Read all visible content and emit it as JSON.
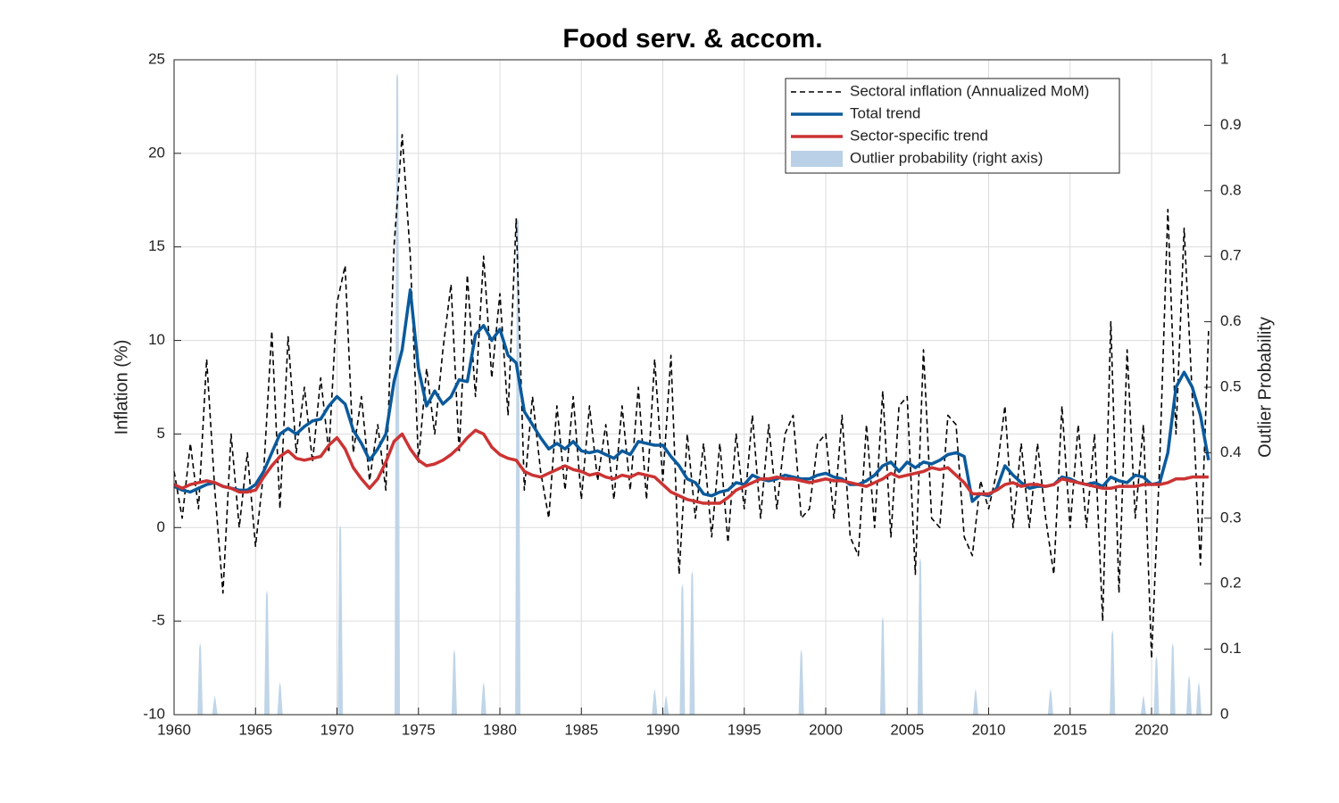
{
  "chart_data": {
    "type": "line",
    "title": "Food serv. & accom.",
    "ylabel": "Inflation (%)",
    "y2label": "Outlier Probability",
    "xlim": [
      1960,
      2023.67
    ],
    "xticks": [
      1960,
      1965,
      1970,
      1975,
      1980,
      1985,
      1990,
      1995,
      2000,
      2005,
      2010,
      2015,
      2020
    ],
    "ylim": [
      -10,
      25
    ],
    "yticks": [
      -10,
      -5,
      0,
      5,
      10,
      15,
      20,
      25
    ],
    "y2lim": [
      0,
      1
    ],
    "y2ticks": [
      0,
      0.1,
      0.2,
      0.3,
      0.4,
      0.5,
      0.6,
      0.7,
      0.8,
      0.9,
      1
    ],
    "grid": true,
    "legend": "northeast",
    "x": [
      1960,
      1960.5,
      1961,
      1961.5,
      1962,
      1962.5,
      1963,
      1963.5,
      1964,
      1964.5,
      1965,
      1965.5,
      1966,
      1966.5,
      1967,
      1967.5,
      1968,
      1968.5,
      1969,
      1969.5,
      1970,
      1970.5,
      1971,
      1971.5,
      1972,
      1972.5,
      1973,
      1973.5,
      1974,
      1974.5,
      1975,
      1975.5,
      1976,
      1976.5,
      1977,
      1977.5,
      1978,
      1978.5,
      1979,
      1979.5,
      1980,
      1980.5,
      1981,
      1981.5,
      1982,
      1982.5,
      1983,
      1983.5,
      1984,
      1984.5,
      1985,
      1985.5,
      1986,
      1986.5,
      1987,
      1987.5,
      1988,
      1988.5,
      1989,
      1989.5,
      1990,
      1990.5,
      1991,
      1991.5,
      1992,
      1992.5,
      1993,
      1993.5,
      1994,
      1994.5,
      1995,
      1995.5,
      1996,
      1996.5,
      1997,
      1997.5,
      1998,
      1998.5,
      1999,
      1999.5,
      2000,
      2000.5,
      2001,
      2001.5,
      2002,
      2002.5,
      2003,
      2003.5,
      2004,
      2004.5,
      2005,
      2005.5,
      2006,
      2006.5,
      2007,
      2007.5,
      2008,
      2008.5,
      2009,
      2009.5,
      2010,
      2010.5,
      2011,
      2011.5,
      2012,
      2012.5,
      2013,
      2013.5,
      2014,
      2014.5,
      2015,
      2015.5,
      2016,
      2016.5,
      2017,
      2017.5,
      2018,
      2018.5,
      2019,
      2019.5,
      2020,
      2020.5,
      2021,
      2021.5,
      2022,
      2022.5,
      2023,
      2023.5
    ],
    "series": [
      {
        "name": "Outlier probability (right axis)",
        "color": "#b9d0e6",
        "mark": "area",
        "axis": "y2",
        "x": [
          1961.6,
          1962.5,
          1965.7,
          1966.5,
          1970.2,
          1973.7,
          1977.2,
          1979.0,
          1981.1,
          1989.5,
          1990.2,
          1991.2,
          1991.8,
          1998.5,
          2003.5,
          2005.8,
          2009.2,
          2013.8,
          2017.6,
          2019.5,
          2020.3,
          2021.3,
          2022.3,
          2022.9
        ],
        "values": [
          0.11,
          0.03,
          0.19,
          0.05,
          0.29,
          0.98,
          0.1,
          0.05,
          0.76,
          0.04,
          0.03,
          0.2,
          0.22,
          0.1,
          0.15,
          0.24,
          0.04,
          0.04,
          0.13,
          0.03,
          0.09,
          0.11,
          0.06,
          0.05
        ]
      },
      {
        "name": "Sectoral inflation (Annualized MoM)",
        "color": "#000000",
        "mark": "line",
        "line_style": "dashed",
        "values": [
          3.0,
          0.5,
          4.5,
          1.0,
          9.0,
          2.0,
          -3.5,
          5.0,
          0.0,
          4.0,
          -1.0,
          3.0,
          10.5,
          1.0,
          10.2,
          4.0,
          7.5,
          3.5,
          8.0,
          4.0,
          12.0,
          14.0,
          4.0,
          7.0,
          2.5,
          5.5,
          2.0,
          15.0,
          21.0,
          14.5,
          3.5,
          8.5,
          5.0,
          9.5,
          13.0,
          4.0,
          13.5,
          7.0,
          14.5,
          8.0,
          12.5,
          6.0,
          16.5,
          2.0,
          7.0,
          3.0,
          0.5,
          6.5,
          2.0,
          7.0,
          1.5,
          6.5,
          2.5,
          5.5,
          1.5,
          6.5,
          2.0,
          7.5,
          1.5,
          9.0,
          2.5,
          9.2,
          -2.5,
          5.0,
          0.5,
          4.5,
          -0.5,
          4.5,
          -0.8,
          5.0,
          1.0,
          6.0,
          0.5,
          5.5,
          1.0,
          5.0,
          6.0,
          0.5,
          1.0,
          4.5,
          5.0,
          0.5,
          6.0,
          -0.5,
          -1.5,
          5.5,
          0.0,
          7.3,
          -0.5,
          6.5,
          7.0,
          -2.5,
          9.5,
          0.5,
          0.0,
          6.0,
          5.5,
          -0.5,
          -1.5,
          2.5,
          1.0,
          3.0,
          6.5,
          0.0,
          4.5,
          0.0,
          4.5,
          0.5,
          -2.5,
          6.5,
          0.0,
          5.5,
          0.0,
          5.0,
          -5.0,
          11.0,
          -3.5,
          9.5,
          0.5,
          5.5,
          -7.0,
          3.5,
          17.0,
          5.0,
          16.0,
          7.0,
          -2.0,
          10.5
        ]
      },
      {
        "name": "Total trend",
        "color": "#0b5a9c",
        "mark": "line",
        "line_style": "solid",
        "values": [
          2.2,
          2.0,
          1.9,
          2.1,
          2.3,
          2.4,
          2.2,
          2.1,
          2.0,
          2.0,
          2.3,
          3.0,
          4.0,
          5.0,
          5.3,
          5.0,
          5.4,
          5.7,
          5.8,
          6.5,
          7.0,
          6.6,
          5.2,
          4.5,
          3.6,
          4.2,
          5.0,
          7.8,
          9.5,
          12.7,
          8.5,
          6.5,
          7.3,
          6.6,
          7.0,
          7.9,
          7.8,
          10.3,
          10.8,
          10.0,
          10.6,
          9.2,
          8.8,
          6.2,
          5.5,
          4.8,
          4.2,
          4.5,
          4.2,
          4.6,
          4.1,
          4.0,
          4.1,
          3.9,
          3.7,
          4.1,
          3.9,
          4.6,
          4.5,
          4.4,
          4.4,
          3.8,
          3.3,
          2.6,
          2.4,
          1.8,
          1.7,
          1.9,
          2.0,
          2.4,
          2.3,
          2.8,
          2.6,
          2.5,
          2.6,
          2.8,
          2.7,
          2.6,
          2.6,
          2.8,
          2.9,
          2.7,
          2.6,
          2.3,
          2.3,
          2.5,
          2.8,
          3.3,
          3.5,
          3.0,
          3.5,
          3.2,
          3.5,
          3.4,
          3.6,
          3.9,
          4.0,
          3.8,
          1.4,
          1.8,
          1.7,
          2.1,
          3.3,
          2.8,
          2.4,
          2.1,
          2.2,
          2.2,
          2.3,
          2.7,
          2.6,
          2.4,
          2.3,
          2.4,
          2.2,
          2.7,
          2.5,
          2.4,
          2.8,
          2.7,
          2.3,
          2.4,
          4.0,
          7.5,
          8.3,
          7.5,
          6.0,
          3.6
        ]
      },
      {
        "name": "Sector-specific trend",
        "color": "#cc3333",
        "mark": "line",
        "line_style": "solid",
        "values": [
          2.3,
          2.1,
          2.3,
          2.4,
          2.5,
          2.4,
          2.2,
          2.1,
          1.9,
          1.9,
          2.0,
          2.7,
          3.3,
          3.8,
          4.1,
          3.7,
          3.6,
          3.7,
          3.8,
          4.4,
          4.8,
          4.2,
          3.2,
          2.6,
          2.1,
          2.6,
          3.5,
          4.6,
          5.0,
          4.2,
          3.6,
          3.3,
          3.4,
          3.6,
          3.9,
          4.3,
          4.8,
          5.2,
          5.0,
          4.3,
          3.9,
          3.7,
          3.6,
          3.0,
          2.8,
          2.7,
          2.9,
          3.1,
          3.3,
          3.1,
          3.0,
          2.8,
          2.9,
          2.7,
          2.6,
          2.8,
          2.7,
          2.9,
          2.8,
          2.7,
          2.3,
          1.9,
          1.7,
          1.5,
          1.4,
          1.3,
          1.3,
          1.3,
          1.6,
          2.0,
          2.2,
          2.4,
          2.6,
          2.6,
          2.7,
          2.6,
          2.6,
          2.5,
          2.4,
          2.5,
          2.6,
          2.5,
          2.5,
          2.4,
          2.3,
          2.2,
          2.4,
          2.6,
          2.9,
          2.7,
          2.8,
          2.9,
          3.0,
          3.2,
          3.1,
          3.2,
          2.8,
          2.4,
          1.8,
          1.8,
          1.8,
          2.0,
          2.3,
          2.4,
          2.2,
          2.3,
          2.3,
          2.2,
          2.3,
          2.6,
          2.5,
          2.4,
          2.3,
          2.2,
          2.1,
          2.1,
          2.2,
          2.2,
          2.2,
          2.3,
          2.3,
          2.3,
          2.4,
          2.6,
          2.6,
          2.7,
          2.7,
          2.7
        ]
      }
    ]
  }
}
